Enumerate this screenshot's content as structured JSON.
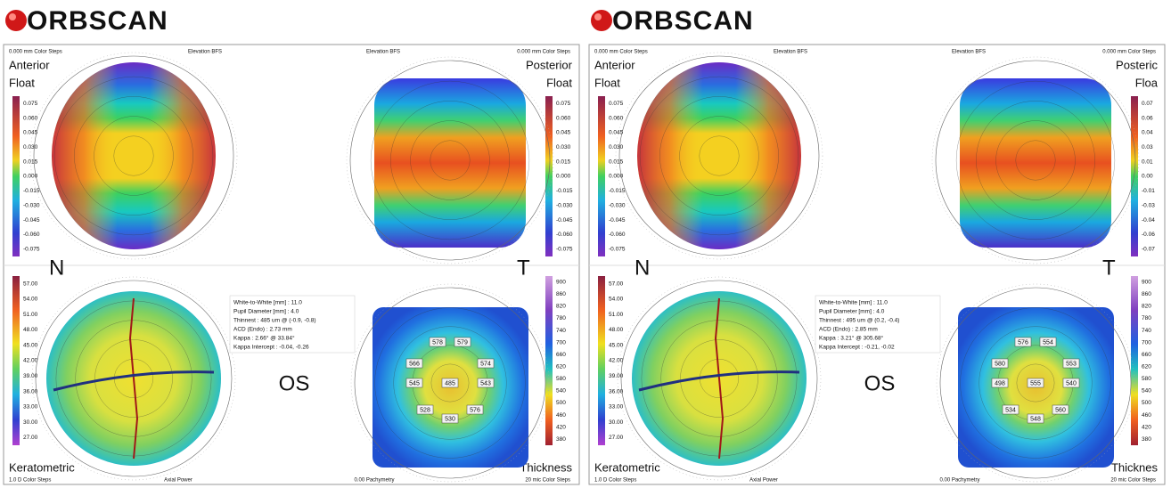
{
  "panels": [
    {
      "logo": "ORBSCAN",
      "header": [
        "0.000 mm Color Steps",
        "Elevation BFS",
        "Elevation BFS",
        "0.000 mm Color Steps"
      ],
      "labels": {
        "anterior": "Anterior",
        "anterior_float": "Float",
        "posterior": "Posterior",
        "posterior_float": "Float",
        "nasal": "N",
        "temporal": "T",
        "eye": "OS",
        "keratometric": "Keratometric",
        "thickness": "Thickness"
      },
      "footer": [
        "1.0 D Color Steps",
        "Axial Power",
        "0.00 Pachymetry",
        "20 mic Color Steps"
      ],
      "info": [
        "White-to-White [mm] : 11.0",
        "Pupil Diameter [mm] : 4.0",
        "Thinnest : 485 um @ (-0.9, -0.8)",
        "ACD (Endo) : 2.73 mm",
        "Kappa : 2.66° @ 33.84°",
        "Kappa Intercept : -0.04, -0.26"
      ],
      "float_scale": [
        "0.075",
        "0.060",
        "0.045",
        "0.030",
        "0.015",
        "0.000",
        "-0.015",
        "-0.030",
        "-0.045",
        "-0.060",
        "-0.075"
      ],
      "posterior_scale": [
        "0.075",
        "0.060",
        "0.045",
        "0.030",
        "0.015",
        "0.000",
        "-0.015",
        "-0.030",
        "-0.045",
        "-0.060",
        "-0.075"
      ],
      "kerato_scale": [
        "57.00",
        "54.00",
        "51.00",
        "48.00",
        "45.00",
        "42.00",
        "39.00",
        "36.00",
        "33.00",
        "30.00",
        "27.00"
      ],
      "thickness_scale": [
        "900",
        "860",
        "820",
        "780",
        "740",
        "700",
        "660",
        "620",
        "580",
        "540",
        "500",
        "460",
        "420",
        "380"
      ],
      "pachymetry": [
        "578",
        "579",
        "566",
        "574",
        "545",
        "485",
        "543",
        "528",
        "530",
        "576"
      ]
    },
    {
      "logo": "ORBSCAN",
      "header": [
        "0.000 mm Color Steps",
        "Elevation BFS",
        "Elevation BFS",
        "0.000 mm Color Steps"
      ],
      "labels": {
        "anterior": "Anterior",
        "anterior_float": "Float",
        "posterior": "Posteric",
        "posterior_float": "Floa",
        "nasal": "N",
        "temporal": "T",
        "eye": "OS",
        "keratometric": "Keratometric",
        "thickness": "Thicknes"
      },
      "footer": [
        "1.0 D Color Steps",
        "Axial Power",
        "0.00 Pachymetry",
        "20 mic Color Steps"
      ],
      "info": [
        "White-to-White [mm] : 11.0",
        "Pupil Diameter [mm] : 4.0",
        "Thinnest : 495 um @ (0.2, -0.4)",
        "ACD (Endo) : 2.85 mm",
        "Kappa : 3.21° @ 305.68°",
        "Kappa Intercept : -0.21, -0.02"
      ],
      "float_scale": [
        "0.075",
        "0.060",
        "0.045",
        "0.030",
        "0.015",
        "0.000",
        "-0.015",
        "-0.030",
        "-0.045",
        "-0.060",
        "-0.075"
      ],
      "posterior_scale": [
        "0.07",
        "0.06",
        "0.04",
        "0.03",
        "0.01",
        "0.00",
        "-0.01",
        "-0.03",
        "-0.04",
        "-0.06",
        "-0.07"
      ],
      "kerato_scale": [
        "57.00",
        "54.00",
        "51.00",
        "48.00",
        "45.00",
        "42.00",
        "39.00",
        "36.00",
        "33.00",
        "30.00",
        "27.00"
      ],
      "thickness_scale": [
        "900",
        "860",
        "820",
        "780",
        "740",
        "700",
        "660",
        "620",
        "580",
        "540",
        "500",
        "460",
        "420",
        "380"
      ],
      "pachymetry": [
        "576",
        "554",
        "580",
        "553",
        "498",
        "555",
        "540",
        "534",
        "548",
        "560"
      ]
    }
  ]
}
